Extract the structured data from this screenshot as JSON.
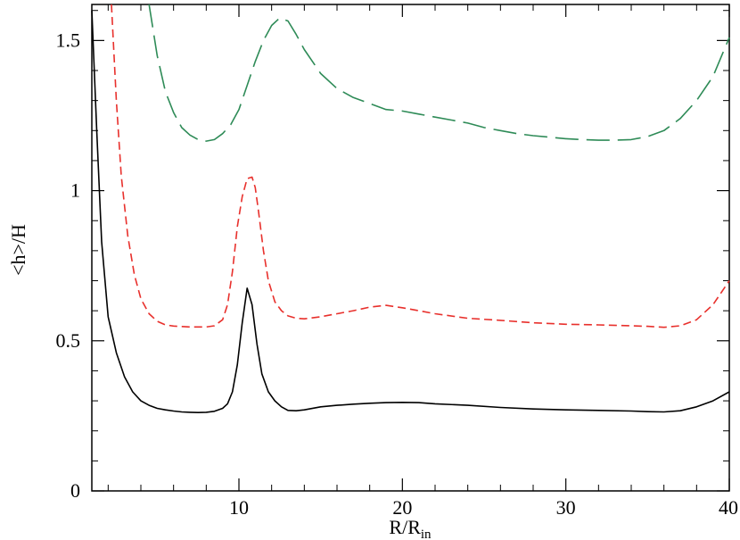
{
  "chart_data": {
    "type": "line",
    "title": "",
    "xlabel": "R/R",
    "xlabel_sub": "in",
    "ylabel": "<h>/H",
    "xlim": [
      1,
      40
    ],
    "ylim": [
      0,
      1.62
    ],
    "xticks": [
      10,
      20,
      30,
      40
    ],
    "xtick_labels": [
      "10",
      "20",
      "30",
      "40"
    ],
    "yticks": [
      0,
      0.5,
      1,
      1.5
    ],
    "ytick_labels": [
      "0",
      "0.5",
      "1",
      "1.5"
    ],
    "x_minor_step": 2,
    "y_minor_step": 0.1,
    "grid": false,
    "legend": "none",
    "series": [
      {
        "color": "#000000",
        "dash": "solid",
        "x": [
          1,
          1.3,
          1.6,
          2,
          2.5,
          3,
          3.5,
          4,
          4.5,
          5,
          5.5,
          6,
          6.5,
          7,
          7.5,
          8,
          8.5,
          9,
          9.3,
          9.6,
          9.9,
          10.2,
          10.5,
          10.8,
          11.1,
          11.4,
          11.8,
          12.2,
          12.6,
          13,
          13.5,
          14,
          15,
          16,
          17,
          18,
          19,
          20,
          21,
          22,
          24,
          26,
          28,
          30,
          32,
          34,
          35,
          36,
          37,
          38,
          39,
          40
        ],
        "y": [
          1.6,
          1.2,
          0.83,
          0.58,
          0.46,
          0.38,
          0.33,
          0.3,
          0.285,
          0.275,
          0.27,
          0.266,
          0.263,
          0.262,
          0.261,
          0.262,
          0.265,
          0.275,
          0.29,
          0.33,
          0.42,
          0.56,
          0.675,
          0.62,
          0.49,
          0.39,
          0.33,
          0.3,
          0.28,
          0.268,
          0.267,
          0.27,
          0.28,
          0.285,
          0.289,
          0.292,
          0.294,
          0.295,
          0.294,
          0.29,
          0.285,
          0.278,
          0.273,
          0.27,
          0.268,
          0.266,
          0.264,
          0.263,
          0.267,
          0.28,
          0.3,
          0.33
        ]
      },
      {
        "color": "#e8302c",
        "dash": "short-dash",
        "x": [
          2.2,
          2.5,
          2.8,
          3.2,
          3.6,
          4,
          4.5,
          5,
          5.5,
          6,
          7,
          8,
          8.5,
          9,
          9.3,
          9.6,
          9.9,
          10.2,
          10.5,
          10.8,
          11,
          11.2,
          11.5,
          11.8,
          12.2,
          12.6,
          13,
          13.5,
          14,
          15,
          16,
          17,
          18,
          19,
          20,
          21,
          22,
          24,
          26,
          28,
          30,
          32,
          34,
          35,
          36,
          37,
          38,
          39,
          40
        ],
        "y": [
          1.62,
          1.3,
          1.05,
          0.85,
          0.72,
          0.64,
          0.59,
          0.565,
          0.553,
          0.549,
          0.546,
          0.546,
          0.55,
          0.57,
          0.62,
          0.73,
          0.88,
          0.98,
          1.04,
          1.045,
          1.01,
          0.93,
          0.8,
          0.7,
          0.63,
          0.6,
          0.583,
          0.575,
          0.573,
          0.58,
          0.59,
          0.6,
          0.612,
          0.618,
          0.61,
          0.6,
          0.59,
          0.575,
          0.568,
          0.56,
          0.555,
          0.553,
          0.55,
          0.548,
          0.545,
          0.55,
          0.57,
          0.62,
          0.7
        ]
      },
      {
        "color": "#2e8b57",
        "dash": "long-dash",
        "x": [
          4.5,
          5,
          5.5,
          6,
          6.5,
          7,
          7.5,
          8,
          8.5,
          9,
          9.5,
          10,
          10.5,
          11,
          11.5,
          12,
          12.5,
          13,
          13.5,
          14,
          14.5,
          15,
          16,
          17,
          18,
          19,
          20,
          21,
          22,
          23,
          24,
          25,
          26,
          27,
          28,
          29,
          30,
          31,
          32,
          33,
          34,
          35,
          36,
          37,
          38,
          39,
          40
        ],
        "y": [
          1.62,
          1.45,
          1.33,
          1.26,
          1.21,
          1.185,
          1.17,
          1.165,
          1.17,
          1.19,
          1.22,
          1.27,
          1.35,
          1.43,
          1.5,
          1.55,
          1.575,
          1.565,
          1.52,
          1.47,
          1.43,
          1.39,
          1.34,
          1.31,
          1.29,
          1.27,
          1.265,
          1.255,
          1.245,
          1.235,
          1.225,
          1.21,
          1.2,
          1.19,
          1.183,
          1.178,
          1.173,
          1.17,
          1.168,
          1.168,
          1.17,
          1.18,
          1.2,
          1.24,
          1.3,
          1.38,
          1.51
        ]
      }
    ]
  }
}
